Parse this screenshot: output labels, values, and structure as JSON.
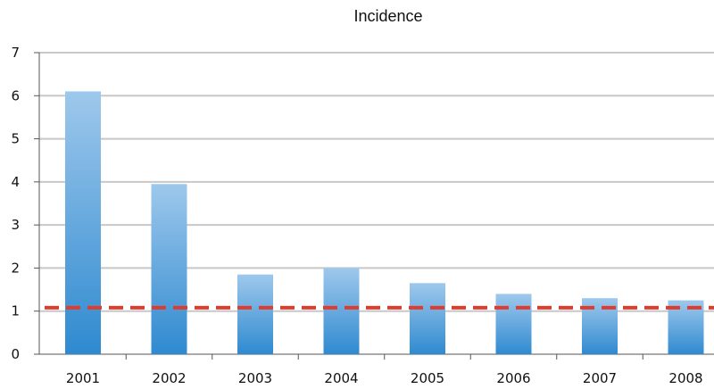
{
  "chart_data": {
    "type": "bar",
    "title": "Incidence",
    "xlabel": "",
    "ylabel": "",
    "categories": [
      "2001",
      "2002",
      "2003",
      "2004",
      "2005",
      "2006",
      "2007",
      "2008"
    ],
    "values": [
      6.1,
      3.95,
      1.85,
      2.0,
      1.65,
      1.4,
      1.3,
      1.25
    ],
    "ylim": [
      0,
      7
    ],
    "yticks": [
      "0",
      "1",
      "2",
      "3",
      "4",
      "5",
      "6",
      "7"
    ],
    "grid": true,
    "legend": "none",
    "reference_line": {
      "value": 1.08,
      "color": "#e03c2e",
      "style": "dashed"
    },
    "bar_color_top": "#9ec8ec",
    "bar_color_bottom": "#2f8ad0",
    "grid_color": "#c8c8c8"
  }
}
